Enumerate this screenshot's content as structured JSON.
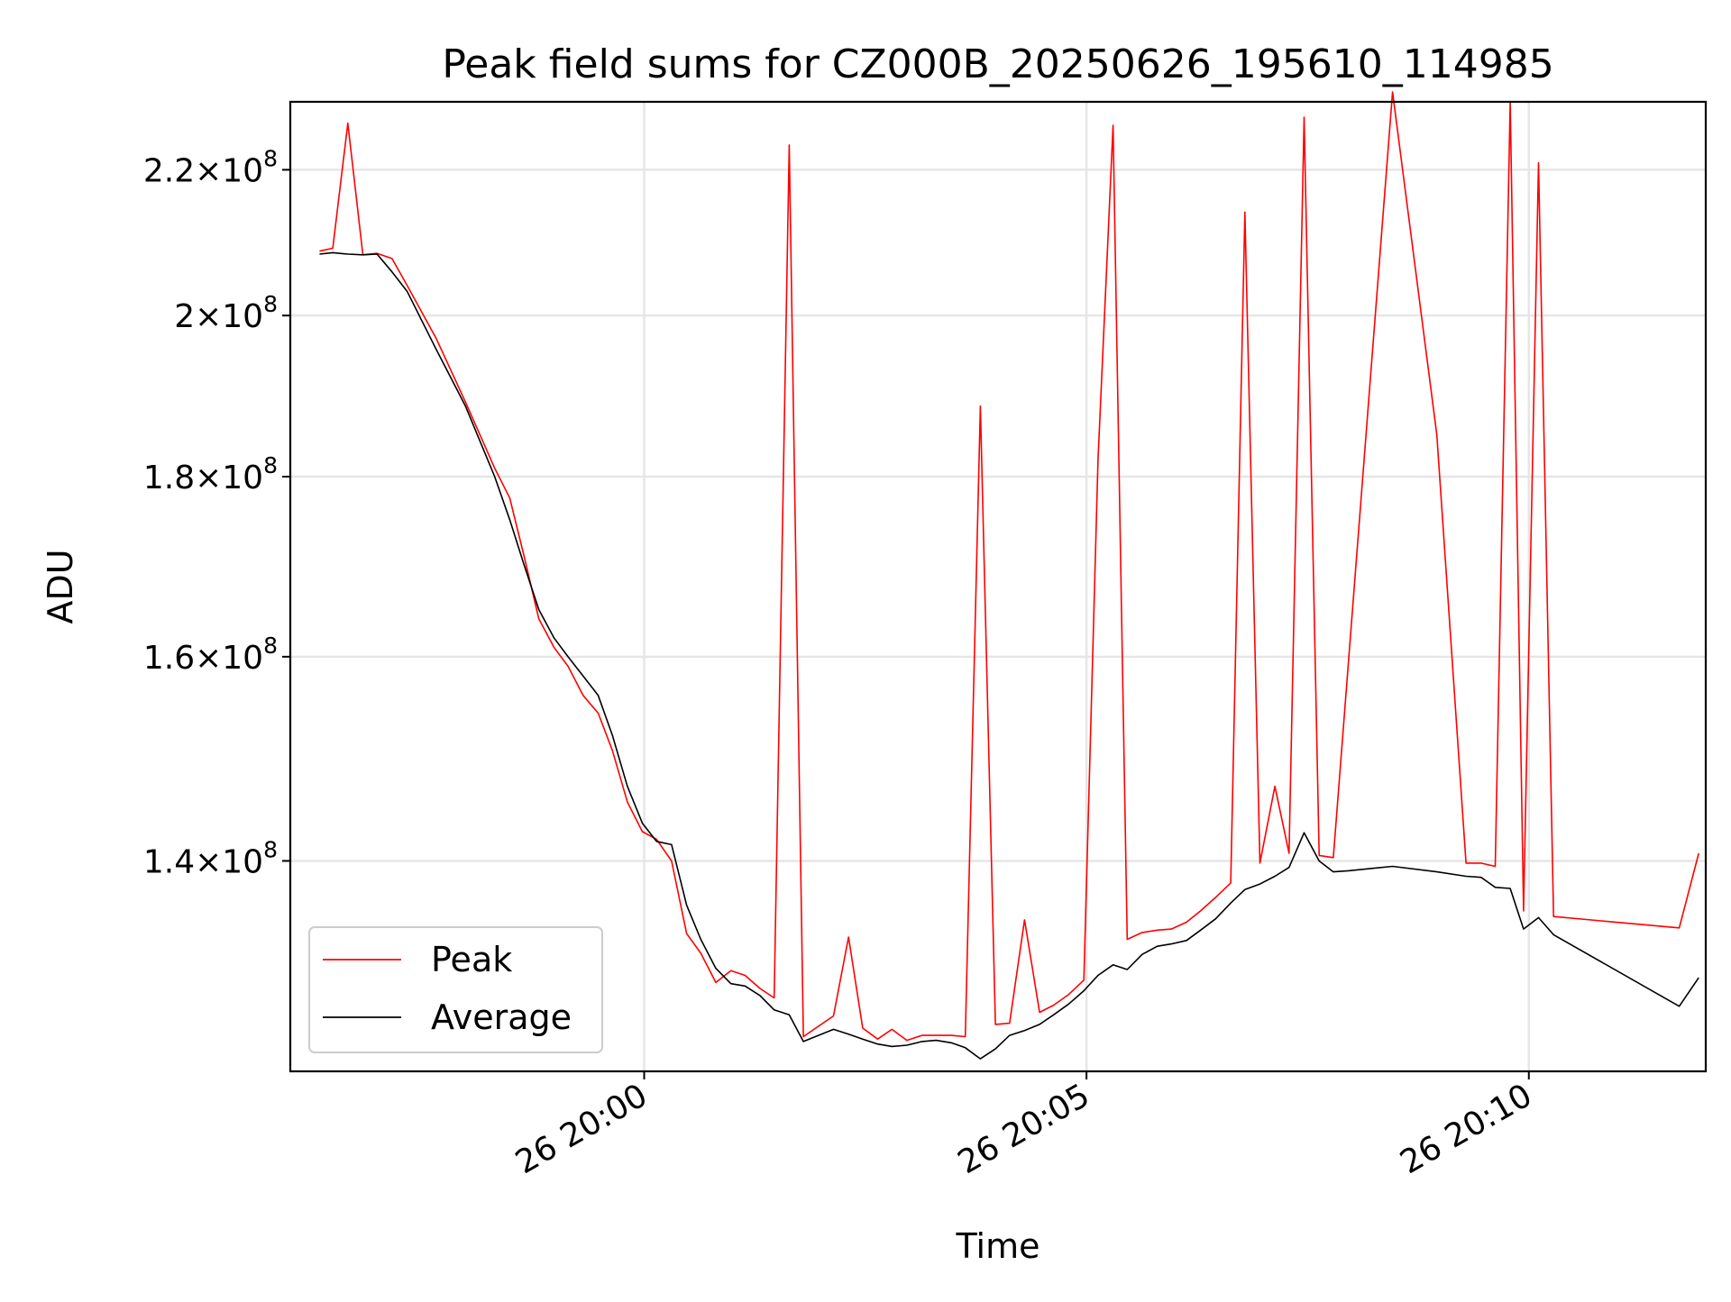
{
  "chart_data": {
    "type": "line",
    "title": "Peak field sums for CZ000B_20250626_195610_114985",
    "xlabel": "Time",
    "ylabel": "ADU",
    "x_unit": "minutes after 19:56:00 on 26 Jun 2025",
    "xlim": [
      0,
      16
    ],
    "ylim": [
      122000000,
      230000000
    ],
    "y_scale": "log",
    "grid": true,
    "legend_position": "lower-left",
    "x_ticks": [
      {
        "value": 4,
        "label": "26 20:00"
      },
      {
        "value": 9,
        "label": "26 20:05"
      },
      {
        "value": 14,
        "label": "26 20:10"
      }
    ],
    "y_ticks": [
      {
        "value": 140000000,
        "mantissa": "1.4",
        "times": "×10",
        "exp": "8"
      },
      {
        "value": 160000000,
        "mantissa": "1.6",
        "times": "×10",
        "exp": "8"
      },
      {
        "value": 180000000,
        "mantissa": "1.8",
        "times": "×10",
        "exp": "8"
      },
      {
        "value": 200000000,
        "mantissa": "2",
        "times": "×10",
        "exp": "8"
      },
      {
        "value": 220000000,
        "mantissa": "2.2",
        "times": "×10",
        "exp": "8"
      }
    ],
    "series": [
      {
        "name": "Peak",
        "color": "#ff0000",
        "points": [
          [
            0.33,
            208.6
          ],
          [
            0.48,
            209.0
          ],
          [
            0.65,
            226.8
          ],
          [
            0.82,
            208.1
          ],
          [
            0.98,
            208.3
          ],
          [
            1.15,
            207.6
          ],
          [
            1.32,
            204.0
          ],
          [
            1.65,
            197.0
          ],
          [
            1.98,
            189.0
          ],
          [
            2.31,
            181.0
          ],
          [
            2.48,
            177.5
          ],
          [
            2.64,
            171.0
          ],
          [
            2.81,
            164.0
          ],
          [
            2.98,
            161.0
          ],
          [
            3.14,
            159.0
          ],
          [
            3.31,
            156.0
          ],
          [
            3.48,
            154.2
          ],
          [
            3.64,
            150.5
          ],
          [
            3.81,
            145.5
          ],
          [
            3.98,
            142.7
          ],
          [
            4.14,
            142.0
          ],
          [
            4.31,
            140.0
          ],
          [
            4.48,
            133.5
          ],
          [
            4.64,
            131.8
          ],
          [
            4.81,
            129.3
          ],
          [
            4.98,
            130.3
          ],
          [
            5.14,
            129.9
          ],
          [
            5.31,
            128.8
          ],
          [
            5.47,
            128.0
          ],
          [
            5.64,
            223.6
          ],
          [
            5.8,
            124.8
          ],
          [
            6.14,
            126.5
          ],
          [
            6.31,
            133.2
          ],
          [
            6.47,
            125.5
          ],
          [
            6.64,
            124.6
          ],
          [
            6.8,
            125.4
          ],
          [
            6.97,
            124.5
          ],
          [
            7.14,
            124.9
          ],
          [
            7.47,
            124.9
          ],
          [
            7.63,
            124.8
          ],
          [
            7.8,
            188.5
          ],
          [
            7.97,
            125.8
          ],
          [
            8.13,
            125.9
          ],
          [
            8.3,
            134.7
          ],
          [
            8.47,
            126.8
          ],
          [
            8.63,
            127.4
          ],
          [
            8.8,
            128.3
          ],
          [
            8.97,
            129.5
          ],
          [
            9.13,
            182.0
          ],
          [
            9.3,
            226.5
          ],
          [
            9.46,
            133.0
          ],
          [
            9.63,
            133.6
          ],
          [
            9.8,
            133.8
          ],
          [
            9.96,
            133.9
          ],
          [
            10.13,
            134.5
          ],
          [
            10.29,
            135.5
          ],
          [
            10.46,
            136.7
          ],
          [
            10.63,
            138.0
          ],
          [
            10.79,
            214.0
          ],
          [
            10.96,
            139.8
          ],
          [
            11.13,
            147.0
          ],
          [
            11.29,
            140.7
          ],
          [
            11.46,
            227.7
          ],
          [
            11.63,
            140.5
          ],
          [
            11.79,
            140.3
          ],
          [
            12.46,
            231.5
          ],
          [
            12.96,
            185.0
          ],
          [
            13.29,
            139.8
          ],
          [
            13.46,
            139.8
          ],
          [
            13.62,
            139.5
          ],
          [
            13.79,
            230.0
          ],
          [
            13.94,
            135.5
          ],
          [
            14.11,
            221.0
          ],
          [
            14.28,
            135.0
          ],
          [
            15.7,
            134.0
          ],
          [
            15.92,
            140.7
          ]
        ]
      },
      {
        "name": "Average",
        "color": "#000000",
        "points": [
          [
            0.33,
            208.2
          ],
          [
            0.48,
            208.4
          ],
          [
            0.65,
            208.2
          ],
          [
            0.82,
            208.1
          ],
          [
            0.98,
            208.2
          ],
          [
            1.15,
            205.8
          ],
          [
            1.32,
            203.2
          ],
          [
            1.65,
            195.6
          ],
          [
            1.98,
            188.5
          ],
          [
            2.31,
            180.0
          ],
          [
            2.48,
            175.0
          ],
          [
            2.64,
            170.0
          ],
          [
            2.81,
            165.0
          ],
          [
            2.98,
            162.0
          ],
          [
            3.14,
            160.0
          ],
          [
            3.31,
            158.0
          ],
          [
            3.48,
            156.0
          ],
          [
            3.64,
            152.0
          ],
          [
            3.81,
            147.0
          ],
          [
            3.98,
            143.5
          ],
          [
            4.14,
            141.8
          ],
          [
            4.31,
            141.5
          ],
          [
            4.48,
            136.0
          ],
          [
            4.64,
            133.0
          ],
          [
            4.81,
            130.5
          ],
          [
            4.98,
            129.2
          ],
          [
            5.14,
            129.0
          ],
          [
            5.31,
            128.2
          ],
          [
            5.47,
            127.0
          ],
          [
            5.64,
            126.6
          ],
          [
            5.8,
            124.4
          ],
          [
            5.97,
            124.9
          ],
          [
            6.14,
            125.4
          ],
          [
            6.31,
            125.0
          ],
          [
            6.47,
            124.6
          ],
          [
            6.64,
            124.2
          ],
          [
            6.8,
            124.0
          ],
          [
            6.97,
            124.1
          ],
          [
            7.14,
            124.4
          ],
          [
            7.3,
            124.5
          ],
          [
            7.47,
            124.3
          ],
          [
            7.63,
            123.9
          ],
          [
            7.8,
            123.0
          ],
          [
            7.97,
            123.8
          ],
          [
            8.13,
            124.9
          ],
          [
            8.3,
            125.3
          ],
          [
            8.47,
            125.8
          ],
          [
            8.63,
            126.6
          ],
          [
            8.8,
            127.5
          ],
          [
            8.97,
            128.6
          ],
          [
            9.13,
            129.9
          ],
          [
            9.3,
            130.8
          ],
          [
            9.46,
            130.4
          ],
          [
            9.63,
            131.7
          ],
          [
            9.8,
            132.4
          ],
          [
            9.96,
            132.6
          ],
          [
            10.13,
            132.9
          ],
          [
            10.29,
            133.8
          ],
          [
            10.46,
            134.8
          ],
          [
            10.63,
            136.2
          ],
          [
            10.79,
            137.4
          ],
          [
            10.96,
            137.9
          ],
          [
            11.13,
            138.6
          ],
          [
            11.29,
            139.4
          ],
          [
            11.46,
            142.6
          ],
          [
            11.63,
            140.0
          ],
          [
            11.79,
            139.0
          ],
          [
            11.96,
            139.1
          ],
          [
            12.46,
            139.5
          ],
          [
            12.96,
            139.0
          ],
          [
            13.29,
            138.6
          ],
          [
            13.46,
            138.5
          ],
          [
            13.62,
            137.6
          ],
          [
            13.79,
            137.5
          ],
          [
            13.94,
            133.9
          ],
          [
            14.11,
            134.9
          ],
          [
            14.28,
            133.4
          ],
          [
            15.7,
            127.3
          ],
          [
            15.92,
            129.7
          ]
        ]
      }
    ]
  }
}
